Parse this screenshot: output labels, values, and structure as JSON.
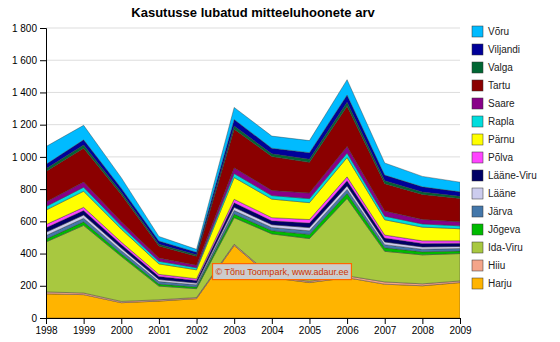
{
  "chart_data": {
    "type": "area",
    "stacked": true,
    "title": "Kasutusse lubatud mitteeluhoonete arv",
    "x": [
      1998,
      1999,
      2000,
      2001,
      2002,
      2003,
      2004,
      2005,
      2006,
      2007,
      2008,
      2009
    ],
    "xlim": [
      1998,
      2009
    ],
    "xticks": [
      1998,
      1999,
      2000,
      2001,
      2002,
      2003,
      2004,
      2005,
      2006,
      2007,
      2008,
      2009
    ],
    "ylim": [
      0,
      1800
    ],
    "yticks": [
      0,
      200,
      400,
      600,
      800,
      {
        "value": 1000,
        "label": "1 000"
      },
      {
        "value": 1200,
        "label": "1 200"
      },
      {
        "value": 1400,
        "label": "1 400"
      },
      {
        "value": 1600,
        "label": "1 600"
      },
      {
        "value": 1800,
        "label": "1 800"
      }
    ],
    "grid": true,
    "legend": "right",
    "annotations": [
      "© Tõnu Toompark, www.adaur.ee"
    ],
    "series": [
      {
        "name": "Harju",
        "color": "#FFB400",
        "values": [
          150,
          145,
          95,
          105,
          120,
          450,
          250,
          220,
          250,
          210,
          200,
          220
        ]
      },
      {
        "name": "Hiiu",
        "color": "#F4A58A",
        "values": [
          12,
          10,
          8,
          8,
          7,
          8,
          7,
          8,
          12,
          14,
          12,
          10
        ]
      },
      {
        "name": "Ida-Viru",
        "color": "#A8C840",
        "values": [
          310,
          420,
          280,
          85,
          55,
          165,
          265,
          265,
          480,
          190,
          180,
          170
        ]
      },
      {
        "name": "Jõgeva",
        "color": "#00BB00",
        "values": [
          18,
          22,
          16,
          13,
          11,
          22,
          20,
          26,
          32,
          22,
          19,
          16
        ]
      },
      {
        "name": "Järva",
        "color": "#4477AA",
        "values": [
          22,
          22,
          19,
          15,
          13,
          22,
          20,
          22,
          24,
          19,
          16,
          15
        ]
      },
      {
        "name": "Lääne",
        "color": "#CCCCEE",
        "values": [
          20,
          20,
          16,
          13,
          11,
          20,
          17,
          20,
          22,
          17,
          14,
          13
        ]
      },
      {
        "name": "Lääne-Viru",
        "color": "#000066",
        "values": [
          28,
          28,
          22,
          19,
          16,
          28,
          24,
          28,
          32,
          24,
          22,
          20
        ]
      },
      {
        "name": "Põlva",
        "color": "#FF44FF",
        "values": [
          20,
          20,
          16,
          13,
          11,
          22,
          20,
          22,
          24,
          19,
          16,
          15
        ]
      },
      {
        "name": "Pärnu",
        "color": "#FFFF00",
        "values": [
          90,
          100,
          80,
          65,
          55,
          135,
          115,
          105,
          120,
          95,
          85,
          75
        ]
      },
      {
        "name": "Rapla",
        "color": "#00DDDD",
        "values": [
          22,
          25,
          20,
          16,
          13,
          25,
          22,
          25,
          28,
          22,
          20,
          18
        ]
      },
      {
        "name": "Saare",
        "color": "#880088",
        "values": [
          28,
          32,
          25,
          20,
          16,
          35,
          32,
          35,
          40,
          32,
          28,
          25
        ]
      },
      {
        "name": "Tartu",
        "color": "#8B0000",
        "values": [
          190,
          210,
          170,
          75,
          55,
          240,
          210,
          190,
          250,
          170,
          155,
          145
        ]
      },
      {
        "name": "Valga",
        "color": "#006633",
        "values": [
          16,
          20,
          14,
          11,
          9,
          20,
          17,
          20,
          25,
          18,
          15,
          13
        ]
      },
      {
        "name": "Viljandi",
        "color": "#000099",
        "values": [
          28,
          32,
          25,
          20,
          16,
          40,
          35,
          40,
          45,
          35,
          32,
          28
        ]
      },
      {
        "name": "Võru",
        "color": "#00BBFF",
        "values": [
          110,
          90,
          65,
          28,
          18,
          75,
          75,
          75,
          95,
          75,
          65,
          60
        ]
      }
    ]
  }
}
